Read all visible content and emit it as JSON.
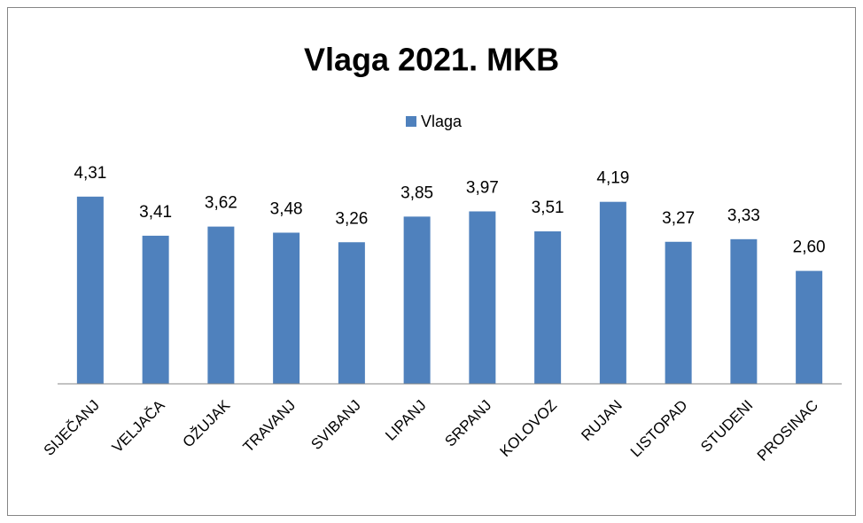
{
  "chart_data": {
    "type": "bar",
    "title": "Vlaga 2021. MKB",
    "categories": [
      "SIJEČANJ",
      "VELJAČA",
      "OŽUJAK",
      "TRAVANJ",
      "SVIBANJ",
      "LIPANJ",
      "SRPANJ",
      "KOLOVOZ",
      "RUJAN",
      "LISTOPAD",
      "STUDENI",
      "PROSINAC"
    ],
    "series": [
      {
        "name": "Vlaga",
        "color": "#4f81bd",
        "values": [
          4.31,
          3.41,
          3.62,
          3.48,
          3.26,
          3.85,
          3.97,
          3.51,
          4.19,
          3.27,
          3.33,
          2.6
        ],
        "value_labels": [
          "4,31",
          "3,41",
          "3,62",
          "3,48",
          "3,26",
          "3,85",
          "3,97",
          "3,51",
          "4,19",
          "3,27",
          "3,33",
          "2,60"
        ]
      }
    ],
    "ylim": [
      0,
      5
    ],
    "legend": "top"
  }
}
